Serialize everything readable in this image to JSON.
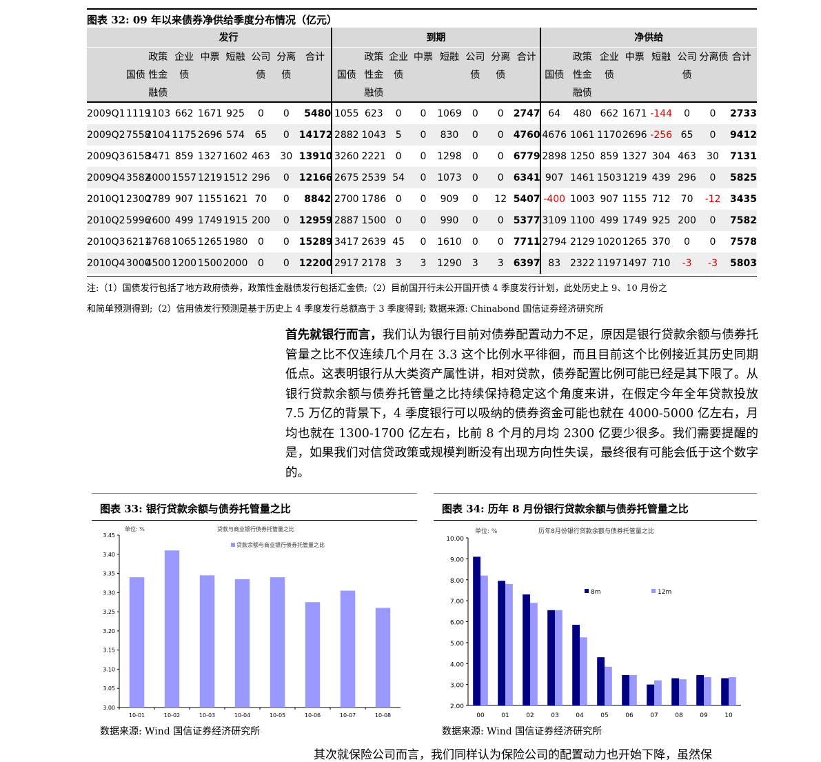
{
  "table": {
    "title": "图表 32: 09 年以来债券净供给季度分布情况（亿元）",
    "groups": [
      "发行",
      "到期",
      "净供给"
    ],
    "rows": [
      [
        "2009Q1",
        "1119",
        "1103",
        "662",
        "1671",
        "925",
        "0",
        "0",
        "5480",
        "1055",
        "623",
        "0",
        "0",
        "1069",
        "0",
        "0",
        "2747",
        "64",
        "480",
        "662",
        "1671",
        "-144",
        "0",
        "0",
        "2733"
      ],
      [
        "2009Q2",
        "7558",
        "2104",
        "1175",
        "2696",
        "574",
        "65",
        "0",
        "14172",
        "2882",
        "1043",
        "5",
        "0",
        "830",
        "0",
        "0",
        "4760",
        "4676",
        "1061",
        "1170",
        "2696",
        "-256",
        "65",
        "0",
        "9412"
      ],
      [
        "2009Q3",
        "6158",
        "3471",
        "859",
        "1327",
        "1602",
        "463",
        "30",
        "13910",
        "3260",
        "2221",
        "0",
        "0",
        "1298",
        "0",
        "0",
        "6779",
        "2898",
        "1250",
        "859",
        "1327",
        "304",
        "463",
        "30",
        "7131"
      ],
      [
        "2009Q4",
        "3582",
        "4000",
        "1557",
        "1219",
        "1512",
        "296",
        "0",
        "12166",
        "2675",
        "2539",
        "54",
        "0",
        "1073",
        "0",
        "0",
        "6341",
        "907",
        "1461",
        "1503",
        "1219",
        "439",
        "296",
        "0",
        "5825"
      ],
      [
        "2010Q1",
        "2300",
        "2789",
        "907",
        "1155",
        "1621",
        "70",
        "0",
        "8842",
        "2700",
        "1786",
        "0",
        "0",
        "909",
        "0",
        "12",
        "5407",
        "-400",
        "1003",
        "907",
        "1155",
        "712",
        "70",
        "-12",
        "3435"
      ],
      [
        "2010Q2",
        "5996",
        "2600",
        "499",
        "1749",
        "1915",
        "200",
        "0",
        "12959",
        "2887",
        "1500",
        "0",
        "0",
        "990",
        "0",
        "0",
        "5377",
        "3109",
        "1100",
        "499",
        "1749",
        "925",
        "200",
        "0",
        "7582"
      ],
      [
        "2010Q3",
        "6211",
        "4768",
        "1065",
        "1265",
        "1980",
        "0",
        "0",
        "15289",
        "3417",
        "2639",
        "45",
        "0",
        "1610",
        "0",
        "0",
        "7711",
        "2794",
        "2129",
        "1020",
        "1265",
        "370",
        "0",
        "0",
        "7578"
      ],
      [
        "2010Q4",
        "3000",
        "4500",
        "1200",
        "1500",
        "2000",
        "0",
        "0",
        "12200",
        "2917",
        "2178",
        "3",
        "3",
        "1290",
        "3",
        "3",
        "6397",
        "83",
        "2322",
        "1197",
        "1497",
        "710",
        "-3",
        "-3",
        "5803"
      ]
    ],
    "note_line1": "注:（1）国债发行包括了地方政府债券，政策性金融债发行包括汇金债;（2）目前国开行未公开国开债 4 季度发行计划，此处历史上 9、10 月份之",
    "note_line2": "和简单预测得到;（2）信用债发行预测是基于历史上 4 季度发行总额高于 3 季度得到; 数据来源: Chinabond 国信证券经济研究所"
  },
  "paragraph": {
    "lead": "首先就银行而言，",
    "body": "我们认为银行目前对债券配置动力不足，原因是银行贷款余额与债券托管量之比不仅连续几个月在 3.3 这个比例水平徘徊，而且目前这个比例接近其历史同期低点。这表明银行从大类资产属性讲，相对贷款，债券配置比例可能已经是其下限了。从银行贷款余额与债券托管量之比持续保持稳定这个角度来讲，在假定今年全年贷款投放 7.5 万亿的背景下，4 季度银行可以吸纳的债券资金可能也就在 4000-5000 亿左右，月均也就在 1300-1700 亿左右，比前 8 个月的月均 2300 亿要少很多。我们需要提醒的是，如果我们对信贷政策或规模判断没有出现方向性失误，最终很有可能会低于这个数字的。"
  },
  "fig33": {
    "title": "图表 33: 银行贷款余额与债券托管量之比",
    "source": "数据来源: Wind 国信证券经济研究所"
  },
  "fig34": {
    "title": "图表 34: 历年 8 月份银行贷款余额与债券托管量之比",
    "source": "数据来源: Wind 国信证券经济研究所"
  },
  "bottom_text": "其次就保险公司而言，我们同样认为保险公司的配置动力也开始下降，虽然保",
  "chart_data": [
    {
      "type": "bar",
      "title": "贷款与商业银行债券托管量之比",
      "unit": "单位: %",
      "categories": [
        "10-01",
        "10-02",
        "10-03",
        "10-04",
        "10-05",
        "10-06",
        "10-07",
        "10-08"
      ],
      "series": [
        {
          "name": "贷款余额与商业银行债券托管量之比",
          "values": [
            3.34,
            3.41,
            3.345,
            3.335,
            3.34,
            3.275,
            3.305,
            3.26
          ],
          "color": "#9999ff"
        }
      ],
      "ylim": [
        3.0,
        3.45
      ],
      "yticks": [
        "3.00",
        "3.05",
        "3.10",
        "3.15",
        "3.20",
        "3.25",
        "3.30",
        "3.35",
        "3.40",
        "3.45"
      ],
      "legend": "top"
    },
    {
      "type": "bar",
      "title": "历年8月份银行贷款余额与债券托管量之比",
      "unit": "单位: %",
      "categories": [
        "00",
        "01",
        "02",
        "03",
        "04",
        "05",
        "06",
        "07",
        "08",
        "09",
        "10"
      ],
      "series": [
        {
          "name": "8m",
          "values": [
            9.1,
            7.95,
            7.3,
            6.55,
            5.85,
            4.3,
            3.45,
            3.0,
            3.3,
            3.45,
            3.3
          ],
          "color": "#000080"
        },
        {
          "name": "12m",
          "values": [
            8.2,
            7.8,
            6.9,
            6.55,
            5.25,
            3.85,
            3.45,
            3.2,
            3.25,
            3.35,
            3.35
          ],
          "color": "#9999ff"
        }
      ],
      "ylim": [
        2.0,
        10.0
      ],
      "yticks": [
        "2.00",
        "3.00",
        "4.00",
        "5.00",
        "6.00",
        "7.00",
        "8.00",
        "9.00",
        "10.00"
      ],
      "legend": "middle-right"
    }
  ]
}
